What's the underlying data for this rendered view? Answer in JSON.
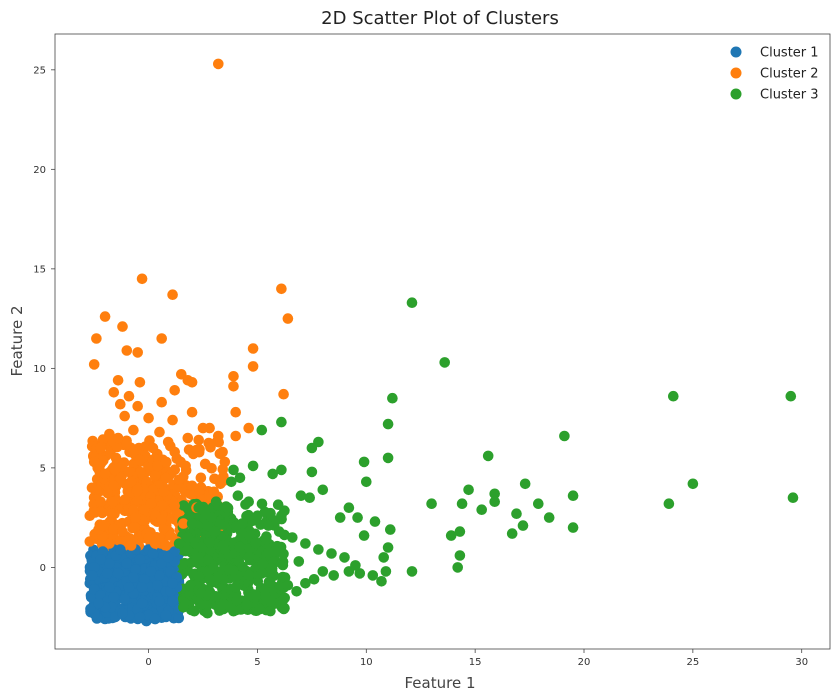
{
  "chart_data": {
    "type": "scatter",
    "title": "2D Scatter Plot of Clusters",
    "xlabel": "Feature 1",
    "ylabel": "Feature 2",
    "xlim": [
      -4.3,
      31.3
    ],
    "ylim": [
      -4.1,
      26.8
    ],
    "xticks": [
      0,
      5,
      10,
      15,
      20,
      25,
      30
    ],
    "yticks": [
      0,
      5,
      10,
      15,
      20,
      25
    ],
    "grid": false,
    "legend_position": "top-right",
    "series": [
      {
        "name": "Cluster 1",
        "color": "#1f77b4",
        "note_dense_region": "x from -2.7 to 1.5, y from -2.7 to 1.0",
        "points": [
          [
            -2.7,
            -0.8
          ],
          [
            -2.6,
            0.3
          ],
          [
            -2.5,
            -1.1
          ],
          [
            -2.4,
            0.6
          ],
          [
            -2.3,
            -0.2
          ],
          [
            -2.2,
            -1.4
          ],
          [
            -2.1,
            0.8
          ],
          [
            -2.0,
            -0.5
          ],
          [
            -1.9,
            -1.7
          ],
          [
            -1.8,
            0.2
          ],
          [
            -1.7,
            -2.0
          ],
          [
            -1.6,
            0.9
          ],
          [
            -1.5,
            -1.2
          ],
          [
            -1.4,
            -0.3
          ],
          [
            -1.3,
            -2.2
          ],
          [
            -1.2,
            0.5
          ],
          [
            -1.1,
            -1.6
          ],
          [
            -1.0,
            -0.7
          ],
          [
            -0.9,
            -2.4
          ],
          [
            -0.8,
            0.7
          ],
          [
            -0.7,
            -1.3
          ],
          [
            -0.6,
            -0.1
          ],
          [
            -0.5,
            -2.1
          ],
          [
            -0.4,
            0.4
          ],
          [
            -0.3,
            -1.8
          ],
          [
            -0.2,
            -0.6
          ],
          [
            -0.1,
            -2.7
          ],
          [
            0.0,
            0.9
          ],
          [
            0.1,
            -1.0
          ],
          [
            0.2,
            -2.3
          ],
          [
            0.3,
            0.1
          ],
          [
            0.4,
            -1.5
          ],
          [
            0.5,
            -0.4
          ],
          [
            0.6,
            -2.0
          ],
          [
            0.7,
            0.6
          ],
          [
            0.8,
            -1.2
          ],
          [
            0.9,
            -2.2
          ],
          [
            1.0,
            -0.2
          ],
          [
            1.1,
            -1.7
          ],
          [
            1.2,
            0.3
          ],
          [
            1.3,
            -1.0
          ],
          [
            1.4,
            -2.1
          ],
          [
            -2.5,
            0.0
          ],
          [
            -1.8,
            -1.0
          ],
          [
            -1.0,
            0.2
          ],
          [
            -0.3,
            -1.0
          ],
          [
            0.4,
            -0.9
          ],
          [
            1.0,
            -1.2
          ],
          [
            -2.0,
            -2.0
          ],
          [
            -1.2,
            -2.3
          ],
          [
            0.0,
            -2.4
          ],
          [
            0.8,
            -2.4
          ],
          [
            -0.6,
            0.9
          ],
          [
            0.2,
            0.7
          ],
          [
            1.2,
            0.8
          ],
          [
            -2.3,
            -1.8
          ],
          [
            -1.5,
            0.6
          ],
          [
            0.6,
            0.2
          ],
          [
            -0.9,
            -1.0
          ],
          [
            0.1,
            -0.2
          ],
          [
            -1.9,
            -0.3
          ],
          [
            1.3,
            -0.5
          ],
          [
            -0.4,
            -2.5
          ],
          [
            0.9,
            0.5
          ],
          [
            -2.6,
            -0.4
          ],
          [
            -1.6,
            -1.5
          ],
          [
            -0.7,
            -0.5
          ],
          [
            0.5,
            -1.7
          ],
          [
            1.1,
            -0.8
          ],
          [
            -1.3,
            0.9
          ],
          [
            -2.2,
            0.4
          ],
          [
            0.3,
            -2.6
          ]
        ]
      },
      {
        "name": "Cluster 2",
        "color": "#ff7f0e",
        "note_dense_region": "x from -2.7 to 3.8, y from 1.0 to 7.0",
        "points": [
          [
            3.2,
            25.3
          ],
          [
            -0.3,
            14.5
          ],
          [
            1.1,
            13.7
          ],
          [
            6.1,
            14.0
          ],
          [
            6.4,
            12.5
          ],
          [
            -2.0,
            12.6
          ],
          [
            -1.2,
            12.1
          ],
          [
            -2.4,
            11.5
          ],
          [
            0.6,
            11.5
          ],
          [
            -1.0,
            10.9
          ],
          [
            -0.5,
            10.8
          ],
          [
            -2.5,
            10.2
          ],
          [
            4.8,
            11.0
          ],
          [
            4.8,
            10.1
          ],
          [
            3.9,
            9.6
          ],
          [
            3.9,
            9.1
          ],
          [
            6.2,
            8.7
          ],
          [
            1.5,
            9.7
          ],
          [
            1.8,
            9.4
          ],
          [
            2.0,
            9.3
          ],
          [
            -1.4,
            9.4
          ],
          [
            -0.4,
            9.3
          ],
          [
            1.2,
            8.9
          ],
          [
            -1.6,
            8.8
          ],
          [
            -0.9,
            8.6
          ],
          [
            -1.3,
            8.2
          ],
          [
            0.6,
            8.3
          ],
          [
            -0.5,
            8.1
          ],
          [
            2.0,
            7.8
          ],
          [
            4.0,
            7.8
          ],
          [
            -1.1,
            7.6
          ],
          [
            0.0,
            7.5
          ],
          [
            1.1,
            7.4
          ],
          [
            4.6,
            7.0
          ],
          [
            2.5,
            7.0
          ],
          [
            2.8,
            7.0
          ],
          [
            -1.8,
            6.7
          ],
          [
            -0.7,
            6.9
          ],
          [
            0.5,
            6.8
          ],
          [
            1.8,
            6.5
          ],
          [
            2.3,
            6.4
          ],
          [
            3.2,
            6.6
          ],
          [
            4.0,
            6.6
          ],
          [
            -2.2,
            6.0
          ],
          [
            -1.0,
            6.2
          ],
          [
            0.2,
            6.0
          ],
          [
            1.2,
            5.8
          ],
          [
            2.2,
            5.9
          ],
          [
            3.4,
            5.8
          ],
          [
            -2.5,
            5.3
          ],
          [
            -1.5,
            5.5
          ],
          [
            -0.4,
            5.4
          ],
          [
            0.8,
            5.3
          ],
          [
            1.7,
            5.1
          ],
          [
            2.6,
            5.2
          ],
          [
            3.5,
            5.3
          ],
          [
            -2.0,
            4.7
          ],
          [
            -0.9,
            4.8
          ],
          [
            0.3,
            4.6
          ],
          [
            1.4,
            4.4
          ],
          [
            2.4,
            4.5
          ],
          [
            3.3,
            4.2
          ],
          [
            -2.6,
            4.0
          ],
          [
            -1.6,
            4.1
          ],
          [
            -0.5,
            3.9
          ],
          [
            0.7,
            3.8
          ],
          [
            1.9,
            3.7
          ],
          [
            2.8,
            3.6
          ],
          [
            -2.2,
            3.3
          ],
          [
            -1.1,
            3.4
          ],
          [
            0.1,
            3.2
          ],
          [
            1.2,
            3.1
          ],
          [
            2.2,
            3.0
          ],
          [
            -2.7,
            2.6
          ],
          [
            -1.7,
            2.7
          ],
          [
            -0.6,
            2.5
          ],
          [
            0.6,
            2.4
          ],
          [
            1.6,
            2.2
          ],
          [
            -2.3,
            1.9
          ],
          [
            -1.2,
            1.8
          ],
          [
            -0.1,
            1.7
          ],
          [
            1.0,
            1.6
          ],
          [
            -2.7,
            1.3
          ],
          [
            -1.8,
            1.2
          ],
          [
            -0.8,
            1.1
          ],
          [
            0.3,
            1.2
          ],
          [
            1.3,
            1.3
          ],
          [
            0.9,
            6.3
          ],
          [
            -0.2,
            2.9
          ],
          [
            -1.4,
            6.5
          ],
          [
            0.4,
            5.1
          ],
          [
            -2.1,
            2.1
          ],
          [
            2.0,
            4.1
          ],
          [
            3.0,
            3.8
          ],
          [
            -0.8,
            4.3
          ],
          [
            0.0,
            1.5
          ]
        ]
      },
      {
        "name": "Cluster 3",
        "color": "#2ca02c",
        "note_dense_region": "x from 1.4 to 6.5, y from -2.3 to 3.5",
        "points": [
          [
            12.1,
            13.3
          ],
          [
            13.6,
            10.3
          ],
          [
            29.5,
            8.6
          ],
          [
            24.1,
            8.6
          ],
          [
            11.2,
            8.5
          ],
          [
            6.1,
            7.3
          ],
          [
            11.0,
            7.2
          ],
          [
            19.1,
            6.6
          ],
          [
            5.2,
            6.9
          ],
          [
            7.8,
            6.3
          ],
          [
            7.5,
            6.0
          ],
          [
            15.6,
            5.6
          ],
          [
            11.0,
            5.5
          ],
          [
            9.9,
            5.3
          ],
          [
            6.1,
            4.9
          ],
          [
            7.5,
            4.8
          ],
          [
            5.7,
            4.7
          ],
          [
            4.8,
            5.1
          ],
          [
            10.0,
            4.3
          ],
          [
            17.3,
            4.2
          ],
          [
            25.0,
            4.2
          ],
          [
            14.7,
            3.9
          ],
          [
            19.5,
            3.6
          ],
          [
            15.9,
            3.7
          ],
          [
            29.6,
            3.5
          ],
          [
            8.0,
            3.9
          ],
          [
            13.0,
            3.2
          ],
          [
            14.4,
            3.2
          ],
          [
            15.9,
            3.3
          ],
          [
            17.9,
            3.2
          ],
          [
            23.9,
            3.2
          ],
          [
            7.4,
            3.5
          ],
          [
            7.0,
            3.6
          ],
          [
            9.2,
            3.0
          ],
          [
            15.3,
            2.9
          ],
          [
            16.9,
            2.7
          ],
          [
            18.4,
            2.5
          ],
          [
            10.4,
            2.3
          ],
          [
            17.2,
            2.1
          ],
          [
            19.5,
            2.0
          ],
          [
            9.6,
            2.5
          ],
          [
            11.1,
            1.9
          ],
          [
            14.3,
            1.8
          ],
          [
            13.9,
            1.6
          ],
          [
            16.7,
            1.7
          ],
          [
            8.8,
            2.5
          ],
          [
            9.9,
            1.6
          ],
          [
            11.0,
            1.0
          ],
          [
            14.3,
            0.6
          ],
          [
            10.8,
            0.5
          ],
          [
            12.1,
            -0.2
          ],
          [
            14.2,
            0.0
          ],
          [
            10.9,
            -0.2
          ],
          [
            10.7,
            -0.7
          ],
          [
            10.3,
            -0.4
          ],
          [
            9.7,
            -0.3
          ],
          [
            9.2,
            -0.2
          ],
          [
            8.5,
            -0.4
          ],
          [
            8.0,
            -0.2
          ],
          [
            7.6,
            -0.6
          ],
          [
            7.2,
            -0.8
          ],
          [
            6.8,
            -1.2
          ],
          [
            6.2,
            -1.6
          ],
          [
            5.6,
            -1.7
          ],
          [
            5.1,
            -2.1
          ],
          [
            4.5,
            -1.9
          ],
          [
            3.9,
            -2.2
          ],
          [
            3.3,
            -2.1
          ],
          [
            2.7,
            -2.3
          ],
          [
            2.1,
            -2.2
          ],
          [
            1.6,
            -2.0
          ],
          [
            1.4,
            1.2
          ],
          [
            2.0,
            2.2
          ],
          [
            2.6,
            2.8
          ],
          [
            3.1,
            3.3
          ],
          [
            3.6,
            3.0
          ],
          [
            4.1,
            3.6
          ],
          [
            4.6,
            3.3
          ],
          [
            5.0,
            2.6
          ],
          [
            5.5,
            2.1
          ],
          [
            6.0,
            1.8
          ],
          [
            6.6,
            1.5
          ],
          [
            7.2,
            1.2
          ],
          [
            7.8,
            0.9
          ],
          [
            8.4,
            0.7
          ],
          [
            9.0,
            0.5
          ],
          [
            9.5,
            0.1
          ],
          [
            2.2,
            0.5
          ],
          [
            2.8,
            -0.6
          ],
          [
            3.4,
            1.1
          ],
          [
            4.0,
            -1.0
          ],
          [
            4.6,
            0.5
          ],
          [
            5.2,
            -0.3
          ],
          [
            5.8,
            0.8
          ],
          [
            6.4,
            -0.9
          ],
          [
            3.0,
            1.8
          ],
          [
            2.4,
            -1.3
          ],
          [
            4.3,
            2.2
          ],
          [
            5.4,
            1.4
          ],
          [
            6.9,
            0.3
          ],
          [
            1.8,
            1.5
          ],
          [
            3.7,
            -0.1
          ],
          [
            4.9,
            -1.4
          ],
          [
            6.1,
            2.6
          ],
          [
            2.3,
            3.0
          ],
          [
            3.8,
            4.3
          ],
          [
            4.2,
            4.5
          ],
          [
            3.9,
            4.9
          ]
        ]
      }
    ]
  }
}
